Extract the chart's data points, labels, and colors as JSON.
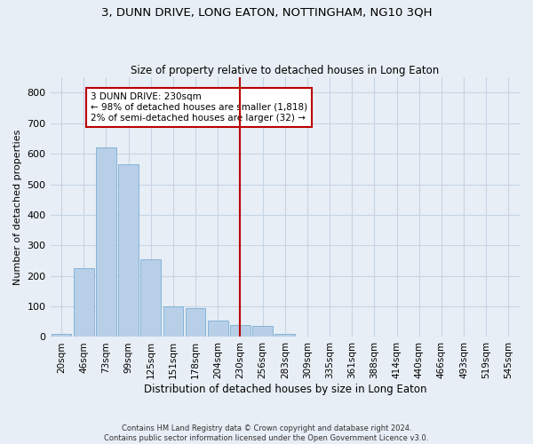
{
  "title": "3, DUNN DRIVE, LONG EATON, NOTTINGHAM, NG10 3QH",
  "subtitle": "Size of property relative to detached houses in Long Eaton",
  "xlabel": "Distribution of detached houses by size in Long Eaton",
  "ylabel": "Number of detached properties",
  "footnote1": "Contains HM Land Registry data © Crown copyright and database right 2024.",
  "footnote2": "Contains public sector information licensed under the Open Government Licence v3.0.",
  "bar_labels": [
    "20sqm",
    "46sqm",
    "73sqm",
    "99sqm",
    "125sqm",
    "151sqm",
    "178sqm",
    "204sqm",
    "230sqm",
    "256sqm",
    "283sqm",
    "309sqm",
    "335sqm",
    "361sqm",
    "388sqm",
    "414sqm",
    "440sqm",
    "466sqm",
    "493sqm",
    "519sqm",
    "545sqm"
  ],
  "bar_values": [
    10,
    225,
    620,
    565,
    255,
    100,
    95,
    55,
    40,
    35,
    10,
    0,
    0,
    0,
    0,
    0,
    0,
    0,
    0,
    0,
    0
  ],
  "bar_color": "#b8cfe8",
  "bar_edge_color": "#7aadd4",
  "grid_color": "#c5d5e5",
  "background_color": "#e8eef5",
  "vline_x": 8,
  "vline_color": "#bb0000",
  "annotation_text": "3 DUNN DRIVE: 230sqm\n← 98% of detached houses are smaller (1,818)\n2% of semi-detached houses are larger (32) →",
  "annotation_box_color": "#bb0000",
  "ylim": [
    0,
    850
  ],
  "yticks": [
    0,
    100,
    200,
    300,
    400,
    500,
    600,
    700,
    800
  ]
}
